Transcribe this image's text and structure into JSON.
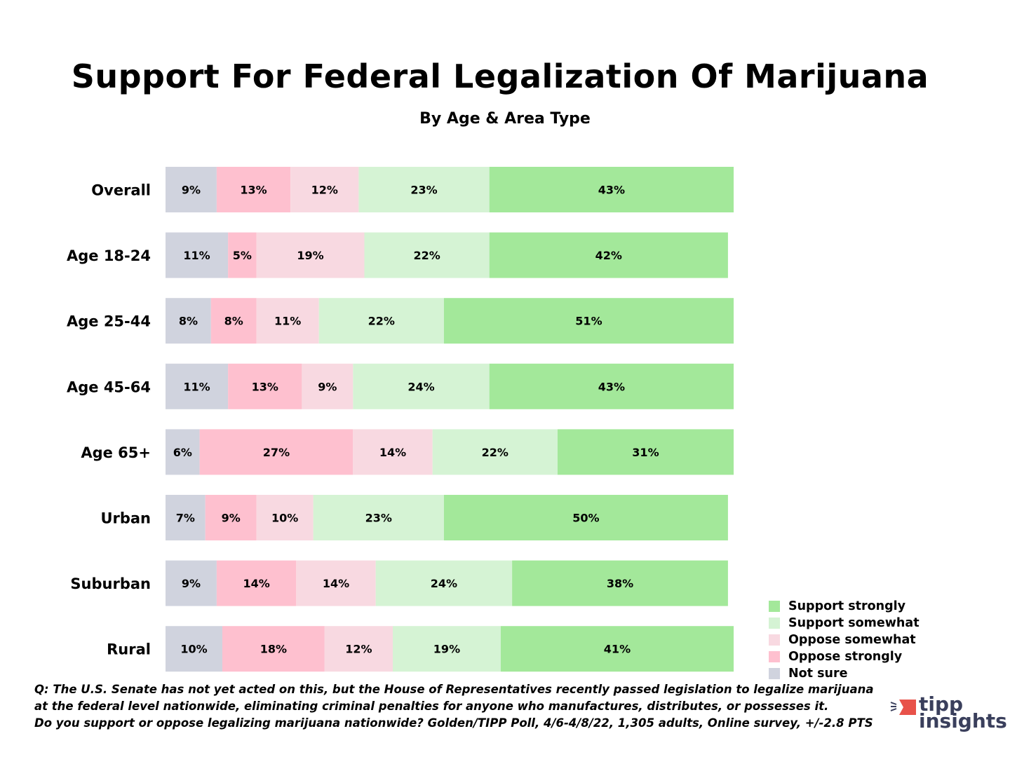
{
  "chart_data": {
    "type": "bar",
    "orientation": "horizontal",
    "stacked": true,
    "title": "Support For Federal Legalization Of Marijuana",
    "subtitle": "By Age & Area Type",
    "categories": [
      "Overall",
      "Age 18-24",
      "Age 25-44",
      "Age 45-64",
      "Age 65+",
      "Urban",
      "Suburban",
      "Rural"
    ],
    "series": [
      {
        "name": "Not sure",
        "color": "#d0d3de",
        "values": [
          9,
          11,
          8,
          11,
          6,
          7,
          9,
          10
        ]
      },
      {
        "name": "Oppose strongly",
        "color": "#fec0cf",
        "values": [
          13,
          5,
          8,
          13,
          27,
          9,
          14,
          18
        ]
      },
      {
        "name": "Oppose somewhat",
        "color": "#f8d9e1",
        "values": [
          12,
          19,
          11,
          9,
          14,
          10,
          14,
          12
        ]
      },
      {
        "name": "Support somewhat",
        "color": "#d5f3d4",
        "values": [
          23,
          22,
          22,
          24,
          22,
          23,
          24,
          19
        ]
      },
      {
        "name": "Support strongly",
        "color": "#a3e89a",
        "values": [
          43,
          42,
          51,
          43,
          31,
          50,
          38,
          41
        ]
      }
    ],
    "legend_order": [
      "Support strongly",
      "Support somewhat",
      "Oppose somewhat",
      "Oppose strongly",
      "Not sure"
    ],
    "legend_position": "bottom-right",
    "value_suffix": "%",
    "grid": false
  },
  "note": [
    "Q: The U.S. Senate has not yet acted on this, but the House of Representatives recently passed legislation to legalize marijuana",
    "at the federal level nationwide, eliminating criminal penalties for anyone who manufactures, distributes, or possesses it.",
    "Do you support or oppose legalizing marijuana nationwide? Golden/TIPP Poll, 4/6-4/8/22, 1,305 adults, Online survey, +/-2.8 PTS"
  ],
  "logo": {
    "line1": "tipp",
    "line2": "insights",
    "accent": "#e8524a"
  }
}
